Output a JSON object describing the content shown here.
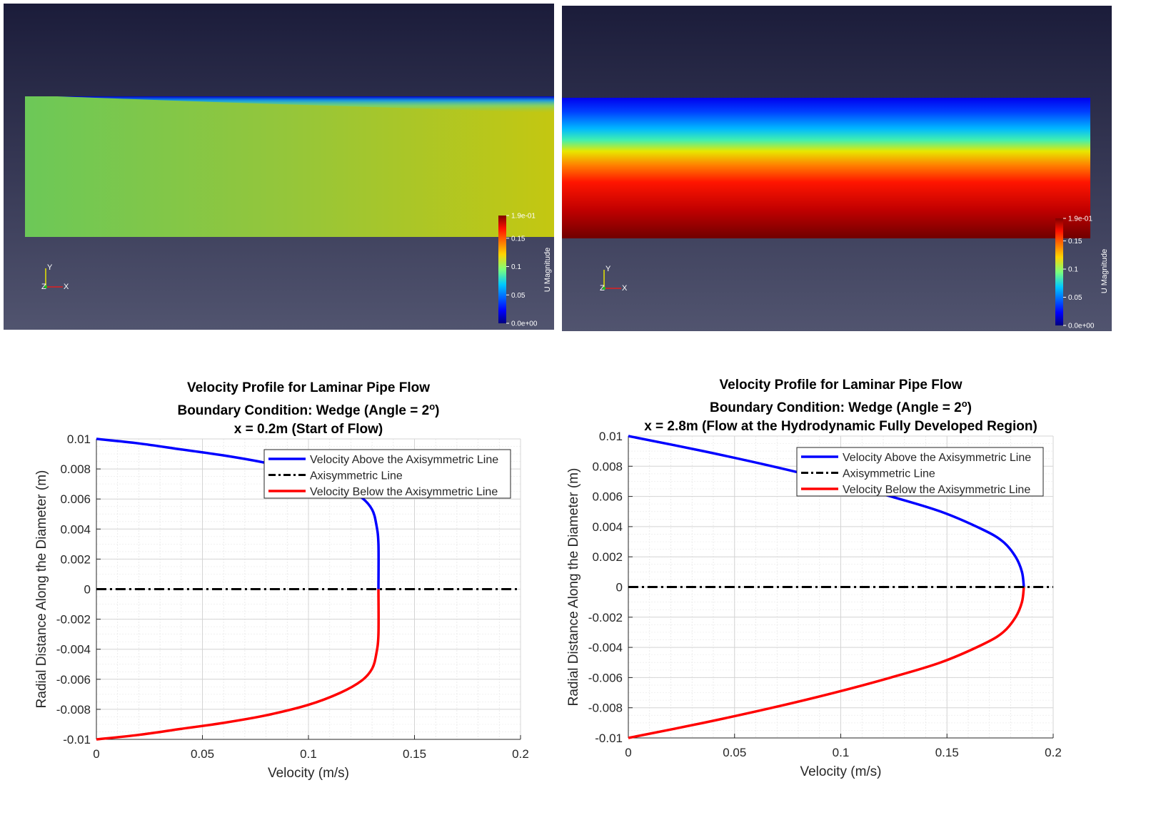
{
  "colors": {
    "top_blue": "#0000ff",
    "bottom_red": "#ff0000",
    "axis_line": "#000000",
    "grid": "#dcdcdc",
    "viewport_bg_top": "#1b1c3a",
    "viewport_bg_bottom": "#51546f"
  },
  "viewports": [
    {
      "colorbar": {
        "title": "U Magnitude",
        "ticks": [
          {
            "value": 0.19,
            "label": "1.9e-01"
          },
          {
            "value": 0.15,
            "label": "0.15"
          },
          {
            "value": 0.1,
            "label": "0.1"
          },
          {
            "value": 0.05,
            "label": "0.05"
          },
          {
            "value": 0.0,
            "label": "0.0e+00"
          }
        ]
      },
      "axes_triad": {
        "y": "Y",
        "z": "Z",
        "x": "X"
      }
    },
    {
      "colorbar": {
        "title": "U Magnitude",
        "ticks": [
          {
            "value": 0.19,
            "label": "1.9e-01"
          },
          {
            "value": 0.15,
            "label": "0.15"
          },
          {
            "value": 0.1,
            "label": "0.1"
          },
          {
            "value": 0.05,
            "label": "0.05"
          },
          {
            "value": 0.0,
            "label": "0.0e+00"
          }
        ]
      },
      "axes_triad": {
        "y": "Y",
        "z": "Z",
        "x": "X"
      }
    }
  ],
  "chart_data": [
    {
      "type": "line",
      "title_lines": [
        "Velocity Profile for Laminar Pipe Flow",
        "Boundary Condition: Wedge (Angle = 2",
        ")",
        "x = 0.2m (Start of Flow)"
      ],
      "title_superscript": "o",
      "xlabel": "Velocity (m/s)",
      "ylabel": "Radial Distance Along the Diameter (m)",
      "xlim": [
        0,
        0.2
      ],
      "ylim": [
        -0.01,
        0.01
      ],
      "xticks": [
        0,
        0.05,
        0.1,
        0.15,
        0.2
      ],
      "xtick_labels": [
        "0",
        "0.05",
        "0.1",
        "0.15",
        "0.2"
      ],
      "yticks": [
        0.01,
        0.008,
        0.006,
        0.004,
        0.002,
        0,
        -0.002,
        -0.004,
        -0.006,
        -0.008,
        -0.01
      ],
      "ytick_labels": [
        "0.01",
        "0.008",
        "0.006",
        "0.004",
        "0.002",
        "0",
        "-0.002",
        "-0.004",
        "-0.006",
        "-0.008",
        "-0.01"
      ],
      "grid": true,
      "legend_location": "top-right",
      "series": [
        {
          "name": "Velocity Above the Axisymmetric Line",
          "x": [
            0,
            0.02,
            0.04,
            0.06,
            0.08,
            0.1,
            0.115,
            0.125,
            0.13,
            0.132,
            0.133,
            0.133
          ],
          "y": [
            0.01,
            0.0097,
            0.0093,
            0.0089,
            0.0084,
            0.0077,
            0.0069,
            0.0061,
            0.0053,
            0.0043,
            0.003,
            0
          ]
        },
        {
          "name": "Axisymmetric Line",
          "x": [
            0,
            0.2
          ],
          "y": [
            0,
            0
          ]
        },
        {
          "name": "Velocity Below the Axisymmetric Line",
          "x": [
            0,
            0.02,
            0.04,
            0.06,
            0.08,
            0.1,
            0.115,
            0.125,
            0.13,
            0.132,
            0.133,
            0.133
          ],
          "y": [
            -0.01,
            -0.0097,
            -0.0093,
            -0.0089,
            -0.0084,
            -0.0077,
            -0.0069,
            -0.0061,
            -0.0053,
            -0.0043,
            -0.003,
            0
          ]
        }
      ]
    },
    {
      "type": "line",
      "title_lines": [
        "Velocity Profile for Laminar Pipe Flow",
        "Boundary Condition: Wedge (Angle = 2",
        ")",
        "x = 2.8m (Flow at the Hydrodynamic Fully Developed Region)"
      ],
      "title_superscript": "o",
      "xlabel": "Velocity (m/s)",
      "ylabel": "Radial Distance Along the Diameter (m)",
      "xlim": [
        0,
        0.2
      ],
      "ylim": [
        -0.01,
        0.01
      ],
      "xticks": [
        0,
        0.05,
        0.1,
        0.15,
        0.2
      ],
      "xtick_labels": [
        "0",
        "0.05",
        "0.1",
        "0.15",
        "0.2"
      ],
      "yticks": [
        0.01,
        0.008,
        0.006,
        0.004,
        0.002,
        0,
        -0.002,
        -0.004,
        -0.006,
        -0.008,
        -0.01
      ],
      "ytick_labels": [
        "0.01",
        "0.008",
        "0.006",
        "0.004",
        "0.002",
        "0",
        "-0.002",
        "-0.004",
        "-0.006",
        "-0.008",
        "-0.01"
      ],
      "grid": true,
      "legend_location": "top-right",
      "series": [
        {
          "name": "Velocity Above the Axisymmetric Line",
          "x": [
            0,
            0.0353,
            0.0677,
            0.0971,
            0.1235,
            0.147,
            0.1669,
            0.1764,
            0.1823,
            0.1853,
            0.1862
          ],
          "y": [
            0.01,
            0.009,
            0.008,
            0.007,
            0.006,
            0.005,
            0.0038,
            0.003,
            0.002,
            0.001,
            0
          ]
        },
        {
          "name": "Axisymmetric Line",
          "x": [
            0,
            0.2
          ],
          "y": [
            0,
            0
          ]
        },
        {
          "name": "Velocity Below the Axisymmetric Line",
          "x": [
            0,
            0.0353,
            0.0677,
            0.0971,
            0.1235,
            0.147,
            0.1669,
            0.1764,
            0.1823,
            0.1853,
            0.1862
          ],
          "y": [
            -0.01,
            -0.009,
            -0.008,
            -0.007,
            -0.006,
            -0.005,
            -0.0038,
            -0.003,
            -0.002,
            -0.001,
            0
          ]
        }
      ]
    }
  ]
}
